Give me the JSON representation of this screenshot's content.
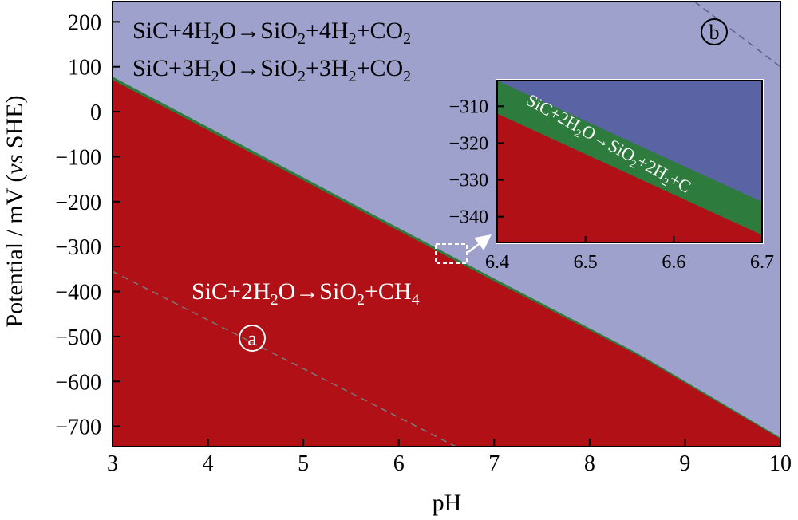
{
  "chart_data": {
    "type": "area",
    "xlabel": "pH",
    "ylabel_main": "Potential / mV (",
    "ylabel_italic": "vs",
    "ylabel_end": " SHE)",
    "xlim": [
      3,
      10
    ],
    "ylim": [
      -745,
      245
    ],
    "x_ticks": [
      "3",
      "4",
      "5",
      "6",
      "7",
      "8",
      "9",
      "10"
    ],
    "y_ticks": [
      "200",
      "100",
      "0",
      "−100",
      "−200",
      "−300",
      "−400",
      "−500",
      "−600",
      "−700"
    ],
    "regions": [
      {
        "label": "SiC+2H₂O→SiO₂+CH₄",
        "color": "#b01016"
      },
      {
        "label": "SiC+4H₂O→SiO₂+4H₂+CO₂",
        "color": "#9ea1cc"
      },
      {
        "label": "SiC+3H₂O→SiO₂+3H₂+CO₂",
        "color": "#9ea1cc"
      }
    ],
    "boundary_upper": {
      "x": [
        3,
        7,
        8.5,
        10
      ],
      "y": [
        78,
        -371,
        -537,
        -725
      ]
    },
    "boundary_lower": {
      "x": [
        3,
        7,
        8.5,
        10
      ],
      "y": [
        71,
        -377,
        -541,
        -728
      ]
    },
    "dashed_a": {
      "x": [
        3,
        6.6
      ],
      "y": [
        -355,
        -745
      ]
    },
    "dashed_b": {
      "x": [
        9.1,
        10
      ],
      "y": [
        245,
        100
      ]
    },
    "markers": {
      "a": "a",
      "b": "b"
    },
    "inset": {
      "xlim": [
        6.4,
        6.7
      ],
      "ylim": [
        -347,
        -303
      ],
      "x_ticks": [
        "6.4",
        "6.5",
        "6.6",
        "6.7"
      ],
      "y_ticks": [
        "−310",
        "−320",
        "−330",
        "−340"
      ],
      "label": "SiC+2H₂O→SiO₂+2H₂+C",
      "green_upper": {
        "x": [
          6.4,
          6.7
        ],
        "y": [
          -303,
          -336
        ]
      },
      "green_lower": {
        "x": [
          6.4,
          6.7
        ],
        "y": [
          -312,
          -345
        ]
      },
      "colors": {
        "red": "#b01016",
        "green": "#2e7b3e",
        "blue": "#5a63a3"
      }
    }
  }
}
